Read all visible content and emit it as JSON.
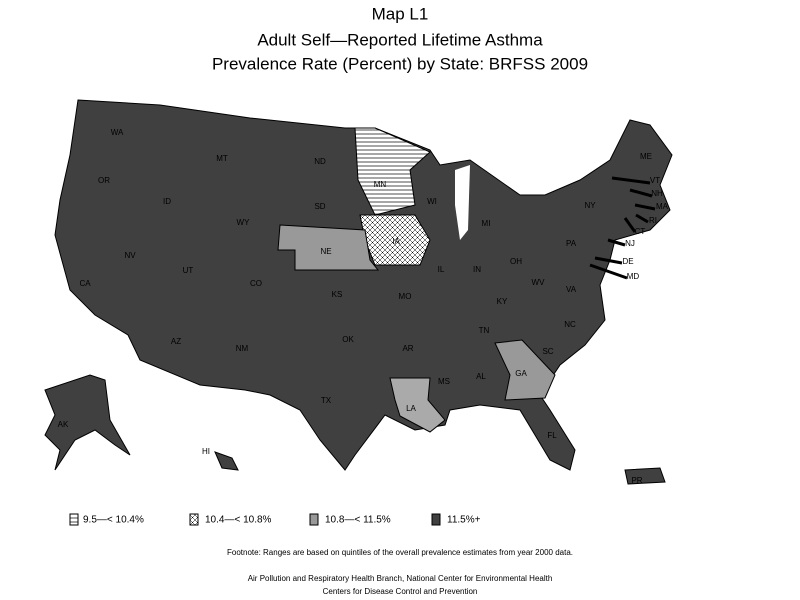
{
  "title": [
    "Map L1",
    "Adult Self—Reported Lifetime Asthma",
    "Prevalence Rate (Percent) by State: BRFSS 2009"
  ],
  "states": [
    "WA",
    "OR",
    "CA",
    "NV",
    "ID",
    "MT",
    "WY",
    "UT",
    "AZ",
    "CO",
    "NM",
    "ND",
    "SD",
    "NE",
    "KS",
    "OK",
    "TX",
    "MN",
    "IA",
    "MO",
    "AR",
    "LA",
    "WI",
    "IL",
    "MI",
    "IN",
    "OH",
    "KY",
    "TN",
    "MS",
    "AL",
    "GA",
    "FL",
    "SC",
    "NC",
    "VA",
    "WV",
    "PA",
    "NY",
    "ME",
    "VT",
    "NH",
    "MA",
    "RI",
    "CT",
    "NJ",
    "DE",
    "MD",
    "AK",
    "HI",
    "PR"
  ],
  "legend": [
    "9.5—< 10.4%",
    "10.4—< 10.8%",
    "10.8—< 11.5%",
    "11.5%+"
  ],
  "footnote": "Footnote: Ranges are based on quintiles of the overall prevalence estimates from year 2000 data.",
  "credits": [
    "Air Pollution and Respiratory Health Branch, National Center for Environmental Health",
    "Centers for Disease Control and Prevention"
  ]
}
